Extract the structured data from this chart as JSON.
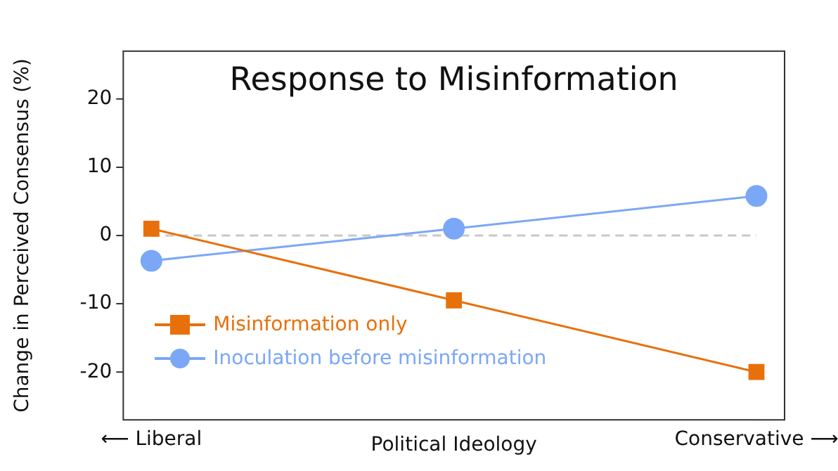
{
  "chart_data": {
    "type": "line",
    "title": "Response to Misinformation",
    "categories": [
      "⟵ Liberal",
      null,
      "Conservative ⟶"
    ],
    "xlabel": "Political Ideology",
    "ylabel": "Change in Perceived Consensus (%)",
    "series": [
      {
        "name": "Misinformation only",
        "color": "#e8700a",
        "marker": "square",
        "values": [
          1,
          -9.5,
          -20
        ]
      },
      {
        "name": "Inoculation before misinformation",
        "color": "#7ba7f7",
        "marker": "circle",
        "values": [
          -3.7,
          1,
          5.8
        ]
      }
    ],
    "ylim": [
      -27,
      27
    ],
    "yticks": [
      -20,
      -10,
      0,
      10,
      20
    ],
    "ref_lines": [
      {
        "axis": "y",
        "value": 0,
        "color": "#c8c8c8",
        "line_style": "dashed"
      }
    ],
    "grid": false,
    "legend": "bottom left",
    "line_style": "solid"
  }
}
